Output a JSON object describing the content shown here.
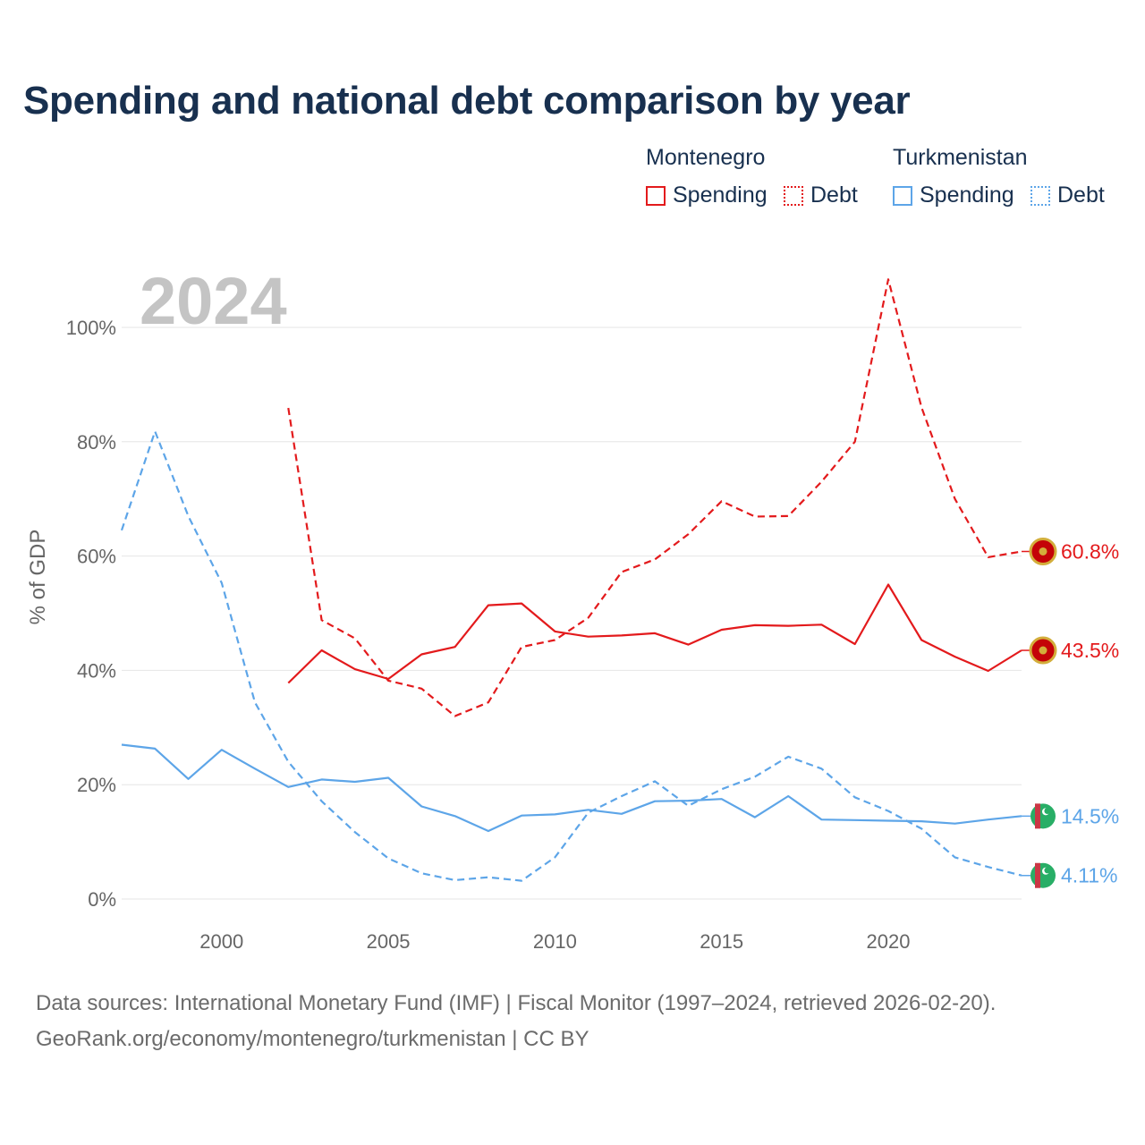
{
  "title": "Spending and national debt comparison by year",
  "legend": {
    "groups": [
      {
        "country": "Montenegro",
        "items": [
          "Spending",
          "Debt"
        ]
      },
      {
        "country": "Turkmenistan",
        "items": [
          "Spending",
          "Debt"
        ]
      }
    ]
  },
  "year_label": "2024",
  "source": {
    "line1": "Data sources: International Monetary Fund (IMF) | Fiscal Monitor (1997–2024, retrieved 2026-02-20).",
    "line2": "GeoRank.org/economy/montenegro/turkmenistan | CC BY"
  },
  "chart_data": {
    "type": "line",
    "title": "Spending and national debt comparison by year",
    "xlabel": "",
    "ylabel": "% of GDP",
    "xlim": [
      1997,
      2024
    ],
    "ylim": [
      0,
      100
    ],
    "xticks": [
      2000,
      2005,
      2010,
      2015,
      2020
    ],
    "yticks": [
      0,
      20,
      40,
      60,
      80,
      100
    ],
    "ytick_labels": [
      "0%",
      "20%",
      "40%",
      "60%",
      "80%",
      "100%"
    ],
    "grid": true,
    "series": [
      {
        "name": "Montenegro Spending",
        "country": "Montenegro",
        "measure": "Spending",
        "color": "#e31a1c",
        "dash": false,
        "end_label": "43.5%",
        "x": [
          2002,
          2003,
          2004,
          2005,
          2006,
          2007,
          2008,
          2009,
          2010,
          2011,
          2012,
          2013,
          2014,
          2015,
          2016,
          2017,
          2018,
          2019,
          2020,
          2021,
          2022,
          2023,
          2024
        ],
        "values": [
          37.8,
          43.5,
          40.2,
          38.5,
          42.8,
          44.1,
          51.4,
          51.7,
          46.8,
          45.9,
          46.1,
          46.5,
          44.5,
          47.1,
          47.9,
          47.8,
          48.0,
          44.6,
          55.0,
          45.3,
          42.4,
          39.9,
          43.5
        ]
      },
      {
        "name": "Montenegro Debt",
        "country": "Montenegro",
        "measure": "Debt",
        "color": "#e31a1c",
        "dash": true,
        "end_label": "60.8%",
        "x": [
          2002,
          2003,
          2004,
          2005,
          2006,
          2007,
          2008,
          2009,
          2010,
          2011,
          2012,
          2013,
          2014,
          2015,
          2016,
          2017,
          2018,
          2019,
          2020,
          2021,
          2022,
          2023,
          2024
        ],
        "values": [
          85.9,
          48.8,
          45.6,
          38.2,
          36.8,
          32.0,
          34.4,
          44.1,
          45.3,
          49.2,
          57.2,
          59.4,
          63.8,
          69.6,
          66.9,
          67.0,
          73.0,
          80.0,
          108.4,
          86.0,
          70.0,
          59.8,
          60.8
        ]
      },
      {
        "name": "Turkmenistan Spending",
        "country": "Turkmenistan",
        "measure": "Spending",
        "color": "#5da5e8",
        "dash": false,
        "end_label": "14.5%",
        "x": [
          1997,
          1998,
          1999,
          2000,
          2001,
          2002,
          2003,
          2004,
          2005,
          2006,
          2007,
          2008,
          2009,
          2010,
          2011,
          2012,
          2013,
          2014,
          2015,
          2016,
          2017,
          2018,
          2019,
          2020,
          2021,
          2022,
          2023,
          2024
        ],
        "values": [
          27.0,
          26.3,
          21.0,
          26.1,
          22.8,
          19.6,
          20.9,
          20.5,
          21.2,
          16.2,
          14.5,
          11.9,
          14.6,
          14.8,
          15.6,
          14.9,
          17.1,
          17.2,
          17.5,
          14.3,
          18.0,
          13.9,
          13.8,
          13.7,
          13.6,
          13.2,
          13.9,
          14.5
        ]
      },
      {
        "name": "Turkmenistan Debt",
        "country": "Turkmenistan",
        "measure": "Debt",
        "color": "#5da5e8",
        "dash": true,
        "end_label": "4.11%",
        "x": [
          1997,
          1998,
          1999,
          2000,
          2001,
          2002,
          2003,
          2004,
          2005,
          2006,
          2007,
          2008,
          2009,
          2010,
          2011,
          2012,
          2013,
          2014,
          2015,
          2016,
          2017,
          2018,
          2019,
          2020,
          2021,
          2022,
          2023,
          2024
        ],
        "values": [
          64.5,
          81.8,
          67.0,
          55.3,
          34.4,
          24.0,
          17.1,
          11.7,
          7.1,
          4.5,
          3.3,
          3.8,
          3.2,
          7.3,
          15.1,
          18.0,
          20.6,
          16.3,
          19.2,
          21.4,
          24.9,
          22.8,
          17.8,
          15.4,
          12.3,
          7.3,
          5.6,
          4.11
        ]
      }
    ]
  }
}
